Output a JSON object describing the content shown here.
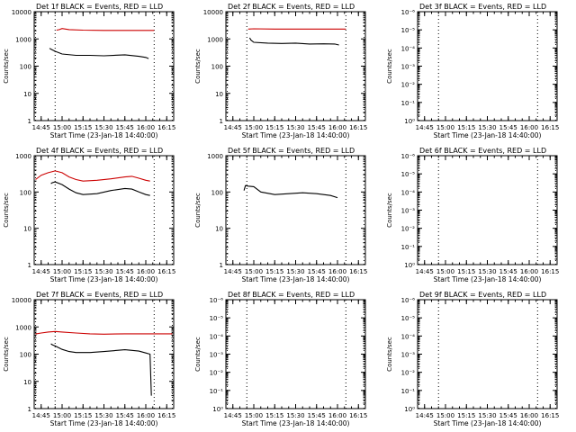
{
  "colors": {
    "events": "#000000",
    "lld": "#cc0000",
    "axes": "#000000"
  },
  "chart_data": [
    {
      "type": "line",
      "title": "Det 1f BLACK = Events, RED = LLD",
      "xlabel": "Start Time (23-Jan-18 14:40:00)",
      "ylabel": "Counts/sec",
      "yscale": "log",
      "ylim": [
        1,
        10000
      ],
      "yticks": [
        "1",
        "10",
        "100",
        "1000",
        "10000"
      ],
      "xlim": [
        "14:40",
        "16:20"
      ],
      "xticks": [
        "14:45",
        "15:00",
        "15:15",
        "15:30",
        "15:45",
        "16:00",
        "16:15"
      ],
      "vlines": [
        "14:41",
        "14:55",
        "16:06",
        "16:19"
      ],
      "series": [
        {
          "color": "red",
          "x": [
            "14:56",
            "14:58",
            "15:00",
            "15:05",
            "15:15",
            "15:30",
            "15:45",
            "16:00",
            "16:06"
          ],
          "y": [
            2100,
            2200,
            2400,
            2200,
            2100,
            2050,
            2050,
            2050,
            2050
          ]
        },
        {
          "color": "black",
          "x": [
            "14:51",
            "14:52",
            "14:55",
            "15:00",
            "15:10",
            "15:20",
            "15:30",
            "15:45",
            "15:55",
            "16:00",
            "16:02"
          ],
          "y": [
            450,
            420,
            350,
            280,
            250,
            250,
            240,
            260,
            230,
            210,
            190
          ]
        }
      ]
    },
    {
      "type": "line",
      "title": "Det 2f BLACK = Events, RED = LLD",
      "xlabel": "Start Time (23-Jan-18 14:40:00)",
      "ylabel": "Counts/sec",
      "yscale": "log",
      "ylim": [
        1,
        10000
      ],
      "yticks": [
        "1",
        "10",
        "100",
        "1000",
        "10000"
      ],
      "xlim": [
        "14:40",
        "16:20"
      ],
      "xticks": [
        "14:45",
        "15:00",
        "15:15",
        "15:30",
        "15:45",
        "16:00",
        "16:15"
      ],
      "vlines": [
        "14:41",
        "14:55",
        "16:06",
        "16:19"
      ],
      "series": [
        {
          "color": "red",
          "x": [
            "14:56",
            "15:00",
            "15:15",
            "15:30",
            "15:45",
            "16:00",
            "16:06"
          ],
          "y": [
            2300,
            2350,
            2300,
            2300,
            2300,
            2300,
            2300
          ]
        },
        {
          "color": "black",
          "x": [
            "14:57",
            "14:58",
            "15:00",
            "15:10",
            "15:20",
            "15:30",
            "15:40",
            "15:50",
            "15:58",
            "16:01"
          ],
          "y": [
            1100,
            900,
            750,
            700,
            680,
            700,
            650,
            660,
            650,
            600
          ]
        }
      ]
    },
    {
      "type": "line",
      "title": "Det 3f BLACK = Events, RED = LLD",
      "xlabel": "Start Time (23-Jan-18 14:40:00)",
      "ylabel": "Counts/sec",
      "yscale": "log",
      "ylim": [
        1,
        1e-06
      ],
      "yticks": [
        "10⁰",
        "10⁻¹",
        "10⁻²",
        "10⁻³",
        "10⁻⁴",
        "10⁻⁵",
        "10⁻⁶"
      ],
      "xlim": [
        "14:40",
        "16:20"
      ],
      "xticks": [
        "14:45",
        "15:00",
        "15:15",
        "15:30",
        "15:45",
        "16:00",
        "16:15"
      ],
      "vlines": [
        "14:41",
        "14:55",
        "16:06",
        "16:19"
      ],
      "series": []
    },
    {
      "type": "line",
      "title": "Det 4f BLACK = Events, RED = LLD",
      "xlabel": "Start Time (23-Jan-18 14:40:00)",
      "ylabel": "Counts/sec",
      "yscale": "log",
      "ylim": [
        1,
        1000
      ],
      "yticks": [
        "1",
        "10",
        "100",
        "1000"
      ],
      "xlim": [
        "14:40",
        "16:20"
      ],
      "xticks": [
        "14:45",
        "15:00",
        "15:15",
        "15:30",
        "15:45",
        "16:00",
        "16:15"
      ],
      "vlines": [
        "14:41",
        "14:55",
        "16:06",
        "16:19"
      ],
      "series": [
        {
          "color": "red",
          "x": [
            "14:41",
            "14:45",
            "14:50",
            "14:55",
            "15:00",
            "15:05",
            "15:10",
            "15:15",
            "15:25",
            "15:35",
            "15:45",
            "15:50",
            "15:55",
            "16:00",
            "16:03"
          ],
          "y": [
            220,
            290,
            340,
            380,
            340,
            260,
            220,
            200,
            210,
            230,
            260,
            270,
            240,
            210,
            200
          ]
        },
        {
          "color": "black",
          "x": [
            "14:52",
            "14:53",
            "14:55",
            "15:00",
            "15:05",
            "15:10",
            "15:15",
            "15:25",
            "15:35",
            "15:45",
            "15:50",
            "15:55",
            "16:00",
            "16:03"
          ],
          "y": [
            170,
            180,
            190,
            160,
            120,
            95,
            85,
            90,
            110,
            125,
            120,
            100,
            85,
            80
          ]
        }
      ]
    },
    {
      "type": "line",
      "title": "Det 5f BLACK = Events, RED = LLD",
      "xlabel": "Start Time (23-Jan-18 14:40:00)",
      "ylabel": "Counts/sec",
      "yscale": "log",
      "ylim": [
        1,
        1000
      ],
      "yticks": [
        "1",
        "10",
        "100",
        "1000"
      ],
      "xlim": [
        "14:40",
        "16:20"
      ],
      "xticks": [
        "14:45",
        "15:00",
        "15:15",
        "15:30",
        "15:45",
        "16:00",
        "16:15"
      ],
      "vlines": [
        "14:41",
        "14:55",
        "16:06",
        "16:19"
      ],
      "series": [
        {
          "color": "black",
          "x": [
            "14:53",
            "14:54",
            "14:56",
            "15:00",
            "15:05",
            "15:15",
            "15:25",
            "15:35",
            "15:45",
            "15:55",
            "16:00"
          ],
          "y": [
            110,
            150,
            145,
            140,
            100,
            85,
            90,
            95,
            90,
            80,
            70
          ]
        }
      ]
    },
    {
      "type": "line",
      "title": "Det 6f BLACK = Events, RED = LLD",
      "xlabel": "Start Time (23-Jan-18 14:40:00)",
      "ylabel": "Counts/sec",
      "yscale": "log",
      "ylim": [
        1,
        1e-06
      ],
      "yticks": [
        "10⁰",
        "10⁻¹",
        "10⁻²",
        "10⁻³",
        "10⁻⁴",
        "10⁻⁵",
        "10⁻⁶"
      ],
      "xlim": [
        "14:40",
        "16:20"
      ],
      "xticks": [
        "14:45",
        "15:00",
        "15:15",
        "15:30",
        "15:45",
        "16:00",
        "16:15"
      ],
      "vlines": [
        "14:41",
        "14:55",
        "16:06",
        "16:19"
      ],
      "series": []
    },
    {
      "type": "line",
      "title": "Det 7f BLACK = Events, RED = LLD",
      "xlabel": "Start Time (23-Jan-18 14:40:00)",
      "ylabel": "Counts/sec",
      "yscale": "log",
      "ylim": [
        1,
        10000
      ],
      "yticks": [
        "1",
        "10",
        "100",
        "1000",
        "10000"
      ],
      "xlim": [
        "14:40",
        "16:20"
      ],
      "xticks": [
        "14:45",
        "15:00",
        "15:15",
        "15:30",
        "15:45",
        "16:00",
        "16:15"
      ],
      "vlines": [
        "14:41",
        "14:55",
        "16:06",
        "16:19"
      ],
      "series": [
        {
          "color": "red",
          "x": [
            "14:41",
            "14:45",
            "14:50",
            "14:55",
            "15:00",
            "15:10",
            "15:20",
            "15:30",
            "15:45",
            "16:00",
            "16:15",
            "16:19"
          ],
          "y": [
            550,
            600,
            650,
            680,
            650,
            600,
            560,
            540,
            560,
            560,
            560,
            560
          ]
        },
        {
          "color": "black",
          "x": [
            "14:52",
            "14:53",
            "14:55",
            "15:00",
            "15:05",
            "15:10",
            "15:20",
            "15:30",
            "15:45",
            "15:55",
            "16:00",
            "16:03",
            "16:04"
          ],
          "y": [
            240,
            220,
            200,
            150,
            125,
            115,
            115,
            125,
            145,
            130,
            110,
            100,
            3
          ]
        }
      ]
    },
    {
      "type": "line",
      "title": "Det 8f BLACK = Events, RED = LLD",
      "xlabel": "Start Time (23-Jan-18 14:40:00)",
      "ylabel": "Counts/sec",
      "yscale": "log",
      "ylim": [
        1,
        1e-06
      ],
      "yticks": [
        "10⁰",
        "10⁻¹",
        "10⁻²",
        "10⁻³",
        "10⁻⁴",
        "10⁻⁵",
        "10⁻⁶"
      ],
      "xlim": [
        "14:40",
        "16:20"
      ],
      "xticks": [
        "14:45",
        "15:00",
        "15:15",
        "15:30",
        "15:45",
        "16:00",
        "16:15"
      ],
      "vlines": [
        "14:41",
        "14:55",
        "16:06",
        "16:19"
      ],
      "series": []
    },
    {
      "type": "line",
      "title": "Det 9f BLACK = Events, RED = LLD",
      "xlabel": "Start Time (23-Jan-18 14:40:00)",
      "ylabel": "Counts/sec",
      "yscale": "log",
      "ylim": [
        1,
        1e-06
      ],
      "yticks": [
        "10⁰",
        "10⁻¹",
        "10⁻²",
        "10⁻³",
        "10⁻⁴",
        "10⁻⁵",
        "10⁻⁶"
      ],
      "xlim": [
        "14:40",
        "16:20"
      ],
      "xticks": [
        "14:45",
        "15:00",
        "15:15",
        "15:30",
        "15:45",
        "16:00",
        "16:15"
      ],
      "vlines": [
        "14:41",
        "14:55",
        "16:06",
        "16:19"
      ],
      "series": []
    }
  ]
}
